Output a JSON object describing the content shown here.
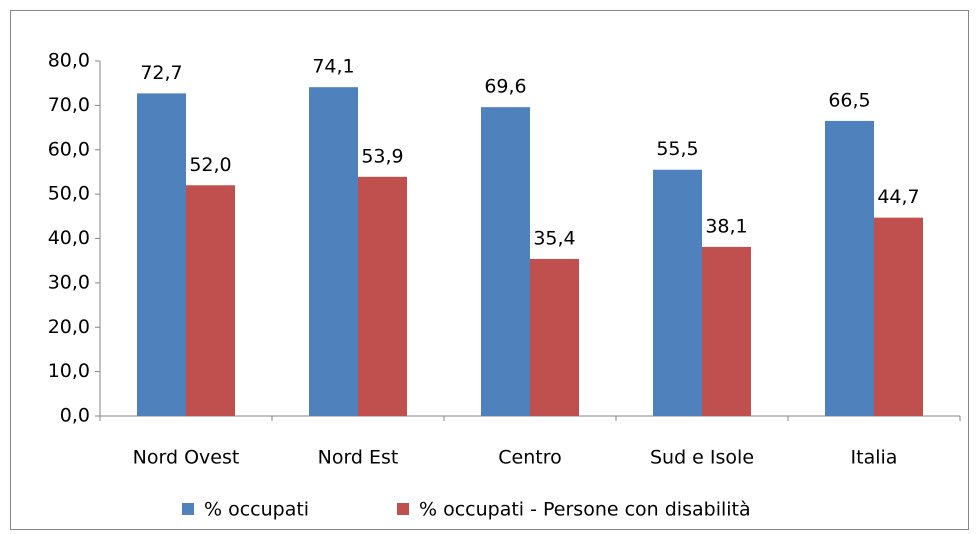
{
  "chart_data": {
    "type": "bar",
    "categories": [
      "Nord Ovest",
      "Nord Est",
      "Centro",
      "Sud e Isole",
      "Italia"
    ],
    "series": [
      {
        "name": "% occupati",
        "color": "#4f81bd",
        "values": [
          72.7,
          74.1,
          69.6,
          55.5,
          66.5
        ],
        "value_labels": [
          "72,7",
          "74,1",
          "69,6",
          "55,5",
          "66,5"
        ]
      },
      {
        "name": "% occupati - Persone con disabilità",
        "color": "#c0504d",
        "values": [
          52.0,
          53.9,
          35.4,
          38.1,
          44.7
        ],
        "value_labels": [
          "52,0",
          "53,9",
          "35,4",
          "38,1",
          "44,7"
        ]
      }
    ],
    "ylim": [
      0,
      80
    ],
    "yticks": [
      {
        "value": 0,
        "label": "0,0"
      },
      {
        "value": 10,
        "label": "10,0"
      },
      {
        "value": 20,
        "label": "20,0"
      },
      {
        "value": 30,
        "label": "30,0"
      },
      {
        "value": 40,
        "label": "40,0"
      },
      {
        "value": 50,
        "label": "50,0"
      },
      {
        "value": 60,
        "label": "60,0"
      },
      {
        "value": 70,
        "label": "70,0"
      },
      {
        "value": 80,
        "label": "80,0"
      }
    ],
    "legend": "bottom"
  }
}
